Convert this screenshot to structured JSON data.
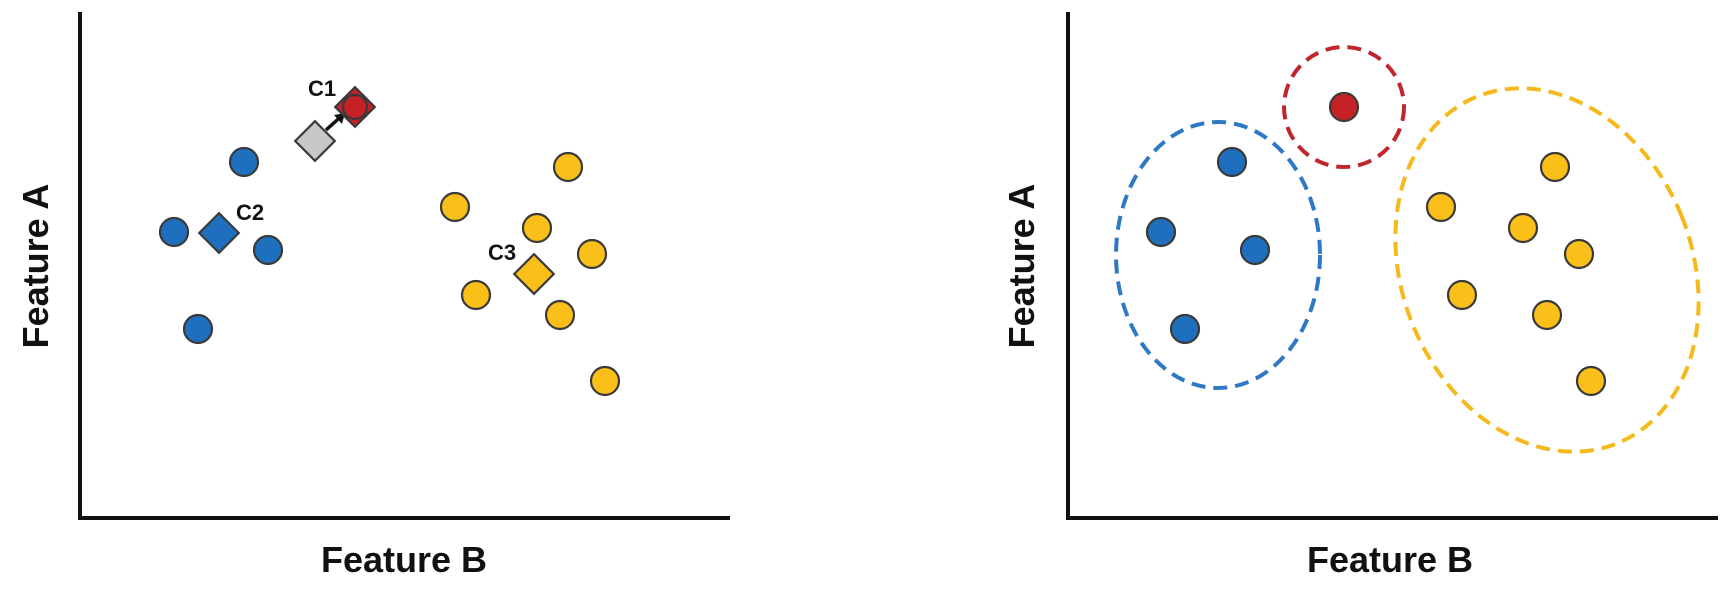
{
  "colors": {
    "blue": "#1f6fbf",
    "yellow": "#fbbf1a",
    "red": "#c62127",
    "gray": "#c8c8c8",
    "blue_ring": "#2f78c4",
    "yellow_ring": "#f5b91e",
    "red_ring": "#c0272d"
  },
  "left_panel": {
    "x_label": "Feature B",
    "y_label": "Feature A",
    "centroid_labels": {
      "c1": "C1",
      "c2": "C2",
      "c3": "C3"
    }
  },
  "right_panel": {
    "x_label": "Feature B",
    "y_label": "Feature A"
  }
}
